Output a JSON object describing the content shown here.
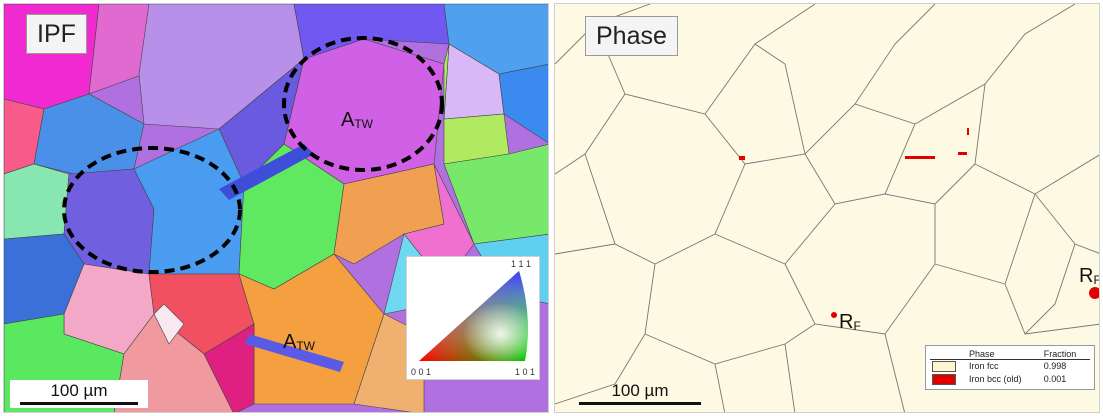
{
  "ipf_panel": {
    "label": "IPF",
    "scalebar": "100 µm",
    "annotation": {
      "main": "A",
      "sub": "TW"
    },
    "key": {
      "top": "1 1 1",
      "bottom_left": "0 0 1",
      "bottom_right": "1 0 1"
    }
  },
  "phase_panel": {
    "label": "Phase",
    "scalebar": "100 µm",
    "annotation": {
      "main": "R",
      "sub": "F"
    },
    "legend": {
      "headers": {
        "phase": "Phase",
        "fraction": "Fraction"
      },
      "rows": [
        {
          "name": "Iron fcc",
          "fraction": "0.998",
          "color": "#fdf6cf"
        },
        {
          "name": "Iron bcc (old)",
          "fraction": "0.001",
          "color": "#e00000"
        }
      ]
    }
  }
}
